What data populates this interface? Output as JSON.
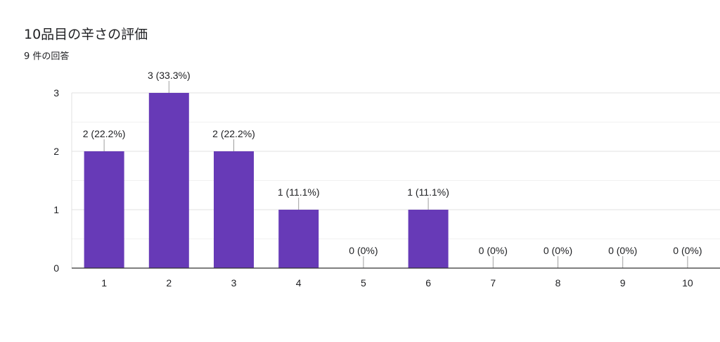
{
  "header": {
    "title": "10品目の辛さの評価",
    "subtitle": "9 件の回答"
  },
  "colors": {
    "bar": "#673ab7",
    "grid": "#e0e0e0",
    "axis": "#333333",
    "leader": "#9e9e9e"
  },
  "chart_data": {
    "type": "bar",
    "title": "10品目の辛さの評価",
    "subtitle": "9 件の回答",
    "categories": [
      "1",
      "2",
      "3",
      "4",
      "5",
      "6",
      "7",
      "8",
      "9",
      "10"
    ],
    "values": [
      2,
      3,
      2,
      1,
      0,
      1,
      0,
      0,
      0,
      0
    ],
    "data_labels": [
      "2 (22.2%)",
      "3 (33.3%)",
      "2 (22.2%)",
      "1 (11.1%)",
      "0 (0%)",
      "1 (11.1%)",
      "0 (0%)",
      "0 (0%)",
      "0 (0%)",
      "0 (0%)"
    ],
    "y_ticks": [
      0,
      1,
      2,
      3
    ],
    "ylim": [
      0,
      3
    ],
    "grid": true,
    "legend": "none"
  }
}
